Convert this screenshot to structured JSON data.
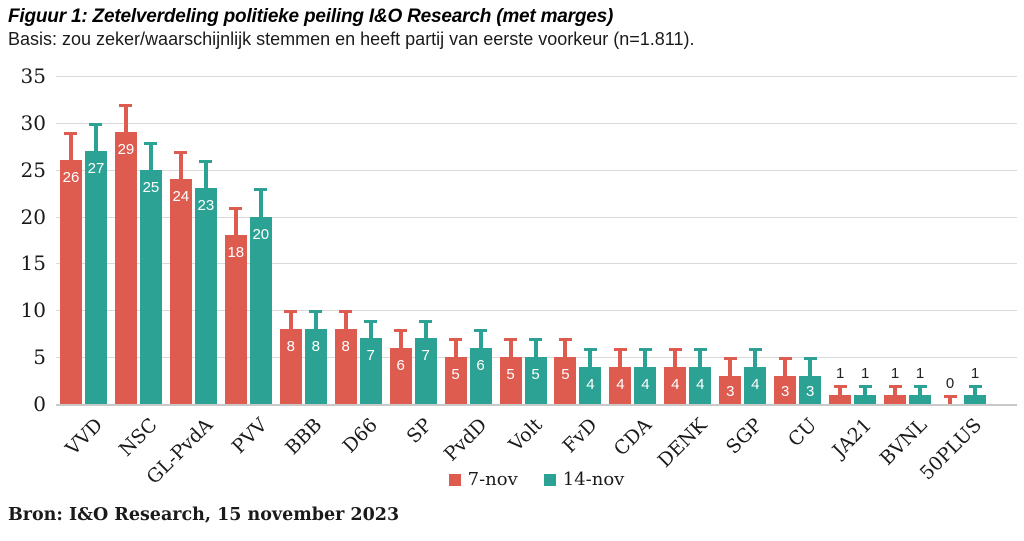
{
  "header": {
    "title": "Figuur 1: Zetelverdeling politieke peiling I&O Research (met marges)",
    "subtitle": "Basis: zou zeker/waarschijnlijk stemmen en heeft partij van eerste voorkeur (n=1.811)."
  },
  "footer": {
    "source": "Bron: I&O Research, 15 november 2023"
  },
  "colors": {
    "series_7nov": "#DE5B4F",
    "series_14nov": "#2BA294",
    "gridline": "#DADADA",
    "axis_line": "#C9C9C9",
    "text": "#1A1A1A",
    "bar_label_inside": "#FFFFFF",
    "bar_label_above": "#222222"
  },
  "chart_data": {
    "type": "bar",
    "title": "Figuur 1: Zetelverdeling politieke peiling I&O Research (met marges)",
    "subtitle": "Basis: zou zeker/waarschijnlijk stemmen en heeft partij van eerste voorkeur (n=1.811).",
    "source": "Bron: I&O Research, 15 november 2023",
    "categories": [
      "VVD",
      "NSC",
      "GL-PvdA",
      "PVV",
      "BBB",
      "D66",
      "SP",
      "PvdD",
      "Volt",
      "FvD",
      "CDA",
      "DENK",
      "SGP",
      "CU",
      "JA21",
      "BVNL",
      "50PLUS"
    ],
    "series": [
      {
        "name": "7-nov",
        "color": "#DE5B4F",
        "values": [
          26,
          29,
          24,
          18,
          8,
          8,
          6,
          5,
          5,
          5,
          4,
          4,
          3,
          3,
          1,
          1,
          0
        ],
        "upper_margins": [
          3,
          3,
          3,
          3,
          2,
          2,
          2,
          2,
          2,
          2,
          2,
          2,
          2,
          2,
          1,
          1,
          1
        ]
      },
      {
        "name": "14-nov",
        "color": "#2BA294",
        "values": [
          27,
          25,
          23,
          20,
          8,
          7,
          7,
          6,
          5,
          4,
          4,
          4,
          4,
          3,
          1,
          1,
          1
        ],
        "upper_margins": [
          3,
          3,
          3,
          3,
          2,
          2,
          2,
          2,
          2,
          2,
          2,
          2,
          2,
          2,
          1,
          1,
          1
        ]
      }
    ],
    "ylim": [
      0,
      35
    ],
    "ytick_step": 5,
    "grid": true,
    "error_bars": "upper",
    "legend_position": "bottom",
    "xlabel": "",
    "ylabel": ""
  }
}
